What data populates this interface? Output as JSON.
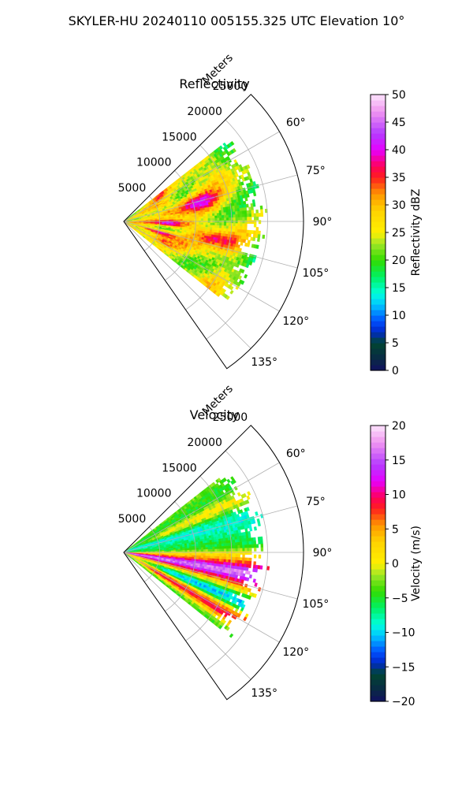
{
  "figure": {
    "suptitle": "SKYLER-HU  20240110  005155.325 UTC Elevation 10°"
  },
  "chart_data": [
    {
      "type": "heatmap",
      "subtype": "polar-sector-ppi",
      "title": "Reflectivity",
      "radial_axis_label": "Meters",
      "radial_ticks": [
        5000,
        10000,
        15000,
        20000,
        25000
      ],
      "radial_tick_labels": [
        "5000",
        "10000",
        "15000",
        "20000",
        "25000"
      ],
      "azimuth_ticks": [
        60,
        75,
        90,
        105,
        120,
        135
      ],
      "azimuth_tick_labels": [
        "60°",
        "75°",
        "90°",
        "105°",
        "120°",
        "135°"
      ],
      "azimuth_range": [
        45,
        145
      ],
      "radial_range": [
        0,
        25000
      ],
      "data_extent": {
        "range_m": [
          0,
          20000
        ],
        "azimuth_deg": [
          52,
          128
        ]
      },
      "grid": true,
      "colorbar": {
        "label": "Reflectivity dBZ",
        "range": [
          0,
          50
        ],
        "ticks": [
          0,
          5,
          10,
          15,
          20,
          25,
          30,
          35,
          40,
          45,
          50
        ],
        "tick_labels": [
          "0",
          "5",
          "10",
          "15",
          "20",
          "25",
          "30",
          "35",
          "40",
          "45",
          "50"
        ]
      },
      "field_description": {
        "dominant_dbz_range": [
          22,
          30
        ],
        "max_dbz": 42,
        "high_core_azimuths_deg": [
          75,
          92,
          107
        ]
      }
    },
    {
      "type": "heatmap",
      "subtype": "polar-sector-ppi",
      "title": "Velocity",
      "radial_axis_label": "Meters",
      "radial_ticks": [
        5000,
        10000,
        15000,
        20000,
        25000
      ],
      "radial_tick_labels": [
        "5000",
        "10000",
        "15000",
        "20000",
        "25000"
      ],
      "azimuth_ticks": [
        60,
        75,
        90,
        105,
        120,
        135
      ],
      "azimuth_tick_labels": [
        "60°",
        "75°",
        "90°",
        "105°",
        "120°",
        "135°"
      ],
      "azimuth_range": [
        45,
        145
      ],
      "radial_range": [
        0,
        25000
      ],
      "data_extent": {
        "range_m": [
          0,
          20000
        ],
        "azimuth_deg": [
          52,
          128
        ]
      },
      "grid": true,
      "colorbar": {
        "label": "Velocity (m/s)",
        "range": [
          -20,
          20
        ],
        "ticks": [
          -20,
          -15,
          -10,
          -5,
          0,
          5,
          10,
          15,
          20
        ],
        "tick_labels": [
          "−20",
          "−15",
          "−10",
          "−5",
          "0",
          "5",
          "10",
          "15",
          "20"
        ]
      },
      "field_description": {
        "velocity_range_m_s": [
          -15,
          15
        ],
        "outbound_max_m_s": 12,
        "inbound_min_m_s": -14
      }
    }
  ]
}
